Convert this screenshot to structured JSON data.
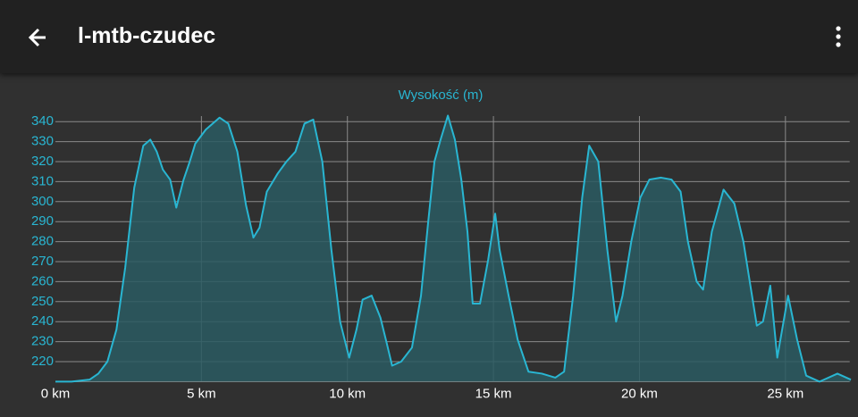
{
  "header": {
    "title": "l-mtb-czudec"
  },
  "chart_data": {
    "type": "area",
    "title": "Wysokość (m)",
    "color": "#29b6d2",
    "fill": "#2a5a62",
    "grid": true,
    "x": [
      0,
      0.55,
      1.17,
      1.47,
      1.78,
      2.09,
      2.39,
      2.7,
      3.01,
      3.25,
      3.47,
      3.68,
      3.93,
      4.14,
      4.39,
      4.6,
      4.79,
      5.15,
      5.62,
      5.92,
      6.23,
      6.53,
      6.78,
      6.99,
      7.24,
      7.61,
      7.91,
      8.22,
      8.53,
      8.83,
      9.14,
      9.45,
      9.75,
      10.06,
      10.31,
      10.52,
      10.83,
      11.13,
      11.35,
      11.53,
      11.84,
      12.21,
      12.52,
      12.76,
      12.98,
      13.19,
      13.44,
      13.68,
      13.9,
      14.11,
      14.29,
      14.54,
      14.82,
      15.06,
      15.21,
      15.52,
      15.83,
      16.2,
      16.66,
      17.12,
      17.42,
      17.73,
      18.04,
      18.28,
      18.59,
      18.9,
      19.2,
      19.42,
      19.72,
      20.03,
      20.34,
      20.74,
      21.1,
      21.41,
      21.66,
      21.96,
      22.18,
      22.48,
      22.88,
      23.25,
      23.56,
      23.8,
      24.02,
      24.23,
      24.48,
      24.72,
      25.09,
      25.4,
      25.71,
      26.17,
      26.78,
      27.24
    ],
    "values": [
      210,
      210,
      211,
      214,
      220,
      236,
      267,
      307,
      328,
      331,
      325,
      316,
      311,
      297,
      311,
      320,
      329,
      336,
      342,
      339,
      325,
      298,
      282,
      287,
      305,
      314,
      320,
      325,
      339,
      341,
      320,
      276,
      240,
      222,
      236,
      251,
      253,
      242,
      229,
      218,
      220,
      227,
      253,
      289,
      320,
      331,
      343,
      331,
      311,
      285,
      249,
      249,
      271,
      294,
      276,
      253,
      231,
      215,
      214,
      212,
      215,
      253,
      302,
      328,
      320,
      276,
      240,
      253,
      280,
      302,
      311,
      312,
      311,
      305,
      280,
      260,
      256,
      285,
      306,
      299,
      280,
      258,
      238,
      240,
      258,
      222,
      253,
      231,
      213,
      210,
      214,
      211
    ],
    "xlim": [
      0,
      27.2
    ],
    "ylim": [
      210,
      345
    ],
    "xticks": [
      {
        "value": 0,
        "label": "0 km"
      },
      {
        "value": 5,
        "label": "5 km"
      },
      {
        "value": 10,
        "label": "10 km"
      },
      {
        "value": 15,
        "label": "15 km"
      },
      {
        "value": 20,
        "label": "20 km"
      },
      {
        "value": 25,
        "label": "25 km"
      }
    ],
    "yticks": [
      220,
      230,
      240,
      250,
      260,
      270,
      280,
      290,
      300,
      310,
      320,
      330,
      340
    ]
  }
}
